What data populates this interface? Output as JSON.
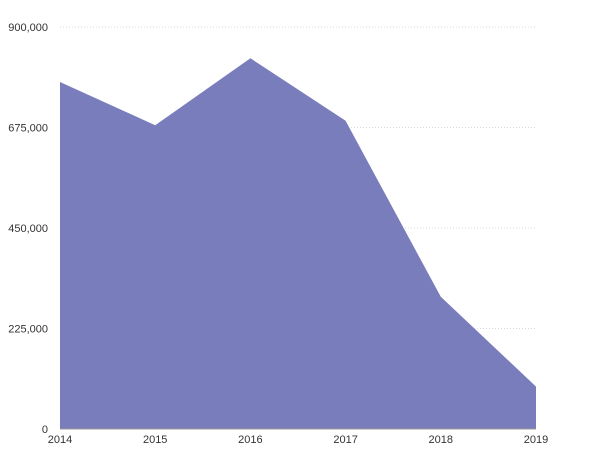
{
  "chart_data": {
    "type": "area",
    "x": [
      "2014",
      "2015",
      "2016",
      "2017",
      "2018",
      "2019"
    ],
    "series": [
      {
        "values": [
          777000,
          680000,
          830000,
          690000,
          296000,
          95000
        ],
        "color": "#7a7dbb"
      }
    ],
    "ylim": [
      0,
      900000
    ],
    "yticks": [
      0,
      225000,
      450000,
      675000,
      900000
    ],
    "ytick_labels": [
      "0",
      "225,000",
      "450,000",
      "675,000",
      "900,000"
    ],
    "grid": true,
    "legend": "none"
  }
}
